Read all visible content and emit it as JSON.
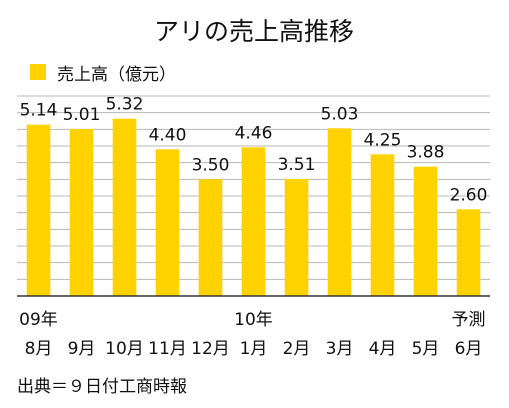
{
  "chart_data": {
    "type": "bar",
    "title": "アリの売上高推移",
    "legend": [
      {
        "name": "売上高（億元）",
        "color": "#FFD200"
      }
    ],
    "legend_placement": "top-left",
    "categories": [
      "8月",
      "9月",
      "10月",
      "11月",
      "12月",
      "1月",
      "2月",
      "3月",
      "4月",
      "5月",
      "6月"
    ],
    "category_group_labels": [
      "09年",
      "",
      "",
      "",
      "",
      "10年",
      "",
      "",
      "",
      "",
      "予測"
    ],
    "series": [
      {
        "name": "売上高（億元）",
        "values": [
          5.14,
          5.01,
          5.32,
          4.4,
          3.5,
          4.46,
          3.51,
          5.03,
          4.25,
          3.88,
          2.6
        ]
      }
    ],
    "value_labels": [
      "5.14",
      "5.01",
      "5.32",
      "4.40",
      "3.50",
      "4.46",
      "3.51",
      "5.03",
      "4.25",
      "3.88",
      "2.60"
    ],
    "ylim": [
      0,
      6
    ],
    "y_gridline_step": 0.5,
    "y_ticks_labeled": false,
    "grid": true,
    "colors": {
      "bar": "#FFD200",
      "grid": "#B8B8B8",
      "axis": "#333333",
      "text": "#111111"
    }
  },
  "source": "出典＝９日付工商時報"
}
